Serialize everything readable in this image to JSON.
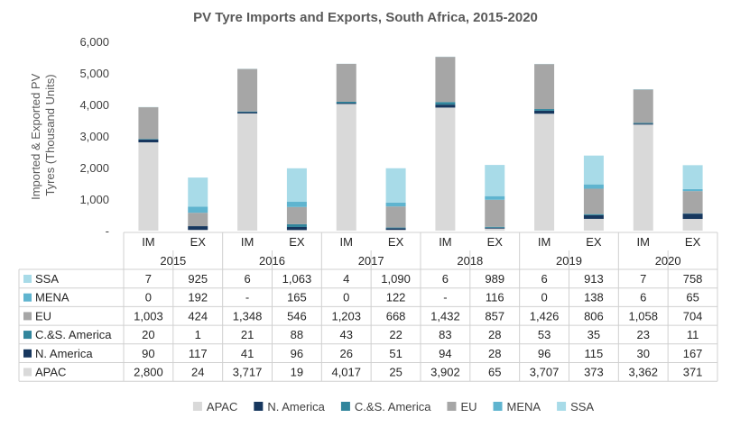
{
  "chart_data": {
    "type": "bar",
    "stacked": true,
    "title": "PV Tyre Imports and Exports, South Africa, 2015-2020",
    "ylabel_lines": [
      "Imported & Exported PV",
      "Tyres (Thousand Units)"
    ],
    "ylim": [
      0,
      6000
    ],
    "yticks": [
      "-",
      "1,000",
      "2,000",
      "3,000",
      "4,000",
      "5,000",
      "6,000"
    ],
    "years": [
      "2015",
      "2016",
      "2017",
      "2018",
      "2019",
      "2020"
    ],
    "categories": [
      "IM",
      "EX",
      "IM",
      "EX",
      "IM",
      "EX",
      "IM",
      "EX",
      "IM",
      "EX",
      "IM",
      "EX"
    ],
    "series": [
      {
        "name": "APAC",
        "color": "#d9d9d9",
        "values": [
          2800,
          24,
          3717,
          19,
          4017,
          25,
          3902,
          65,
          3707,
          373,
          3362,
          371
        ],
        "labels": [
          "2,800",
          "24",
          "3,717",
          "19",
          "4,017",
          "25",
          "3,902",
          "65",
          "3,707",
          "373",
          "3,362",
          "371"
        ]
      },
      {
        "name": "N. America",
        "color": "#17375e",
        "values": [
          90,
          117,
          41,
          96,
          26,
          51,
          94,
          28,
          96,
          115,
          30,
          167
        ],
        "labels": [
          "90",
          "117",
          "41",
          "96",
          "26",
          "51",
          "94",
          "28",
          "96",
          "115",
          "30",
          "167"
        ]
      },
      {
        "name": "C.&S. America",
        "color": "#31859c",
        "values": [
          20,
          1,
          21,
          88,
          43,
          22,
          83,
          28,
          53,
          35,
          23,
          11
        ],
        "labels": [
          "20",
          "1",
          "21",
          "88",
          "43",
          "22",
          "83",
          "28",
          "53",
          "35",
          "23",
          "11"
        ]
      },
      {
        "name": "EU",
        "color": "#a6a6a6",
        "values": [
          1003,
          424,
          1348,
          546,
          1203,
          668,
          1432,
          857,
          1426,
          806,
          1058,
          704
        ],
        "labels": [
          "1,003",
          "424",
          "1,348",
          "546",
          "1,203",
          "668",
          "1,432",
          "857",
          "1,426",
          "806",
          "1,058",
          "704"
        ]
      },
      {
        "name": "MENA",
        "color": "#5fb4cf",
        "values": [
          0,
          192,
          0,
          165,
          0,
          122,
          0,
          116,
          0,
          138,
          6,
          65
        ],
        "labels": [
          "0",
          "192",
          "-",
          "165",
          "0",
          "122",
          "-",
          "116",
          "0",
          "138",
          "6",
          "65"
        ]
      },
      {
        "name": "SSA",
        "color": "#a8dbe8",
        "values": [
          7,
          925,
          6,
          1063,
          4,
          1090,
          6,
          989,
          6,
          913,
          7,
          758
        ],
        "labels": [
          "7",
          "925",
          "6",
          "1,063",
          "4",
          "1,090",
          "6",
          "989",
          "6",
          "913",
          "7",
          "758"
        ]
      }
    ],
    "table_row_order": [
      "SSA",
      "MENA",
      "EU",
      "C.&S. America",
      "N. America",
      "APAC"
    ],
    "legend_order": [
      "APAC",
      "N. America",
      "C.&S. America",
      "EU",
      "MENA",
      "SSA"
    ],
    "legend_position": "bottom",
    "data_table": true
  }
}
